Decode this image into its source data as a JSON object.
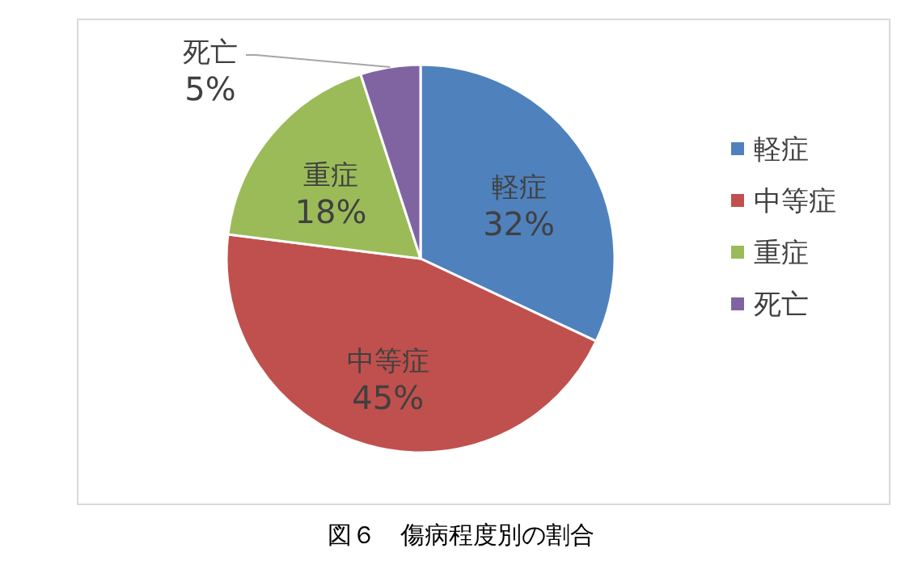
{
  "chart_data": {
    "type": "pie",
    "title": "図６　傷病程度別の割合",
    "categories": [
      "軽症",
      "中等症",
      "重症",
      "死亡"
    ],
    "values": [
      32,
      45,
      18,
      5
    ],
    "value_labels": [
      "32%",
      "45%",
      "18%",
      "5%"
    ],
    "colors": [
      "#4f81bd",
      "#c0504d",
      "#9bbb59",
      "#8064a2"
    ],
    "legend": "right"
  }
}
